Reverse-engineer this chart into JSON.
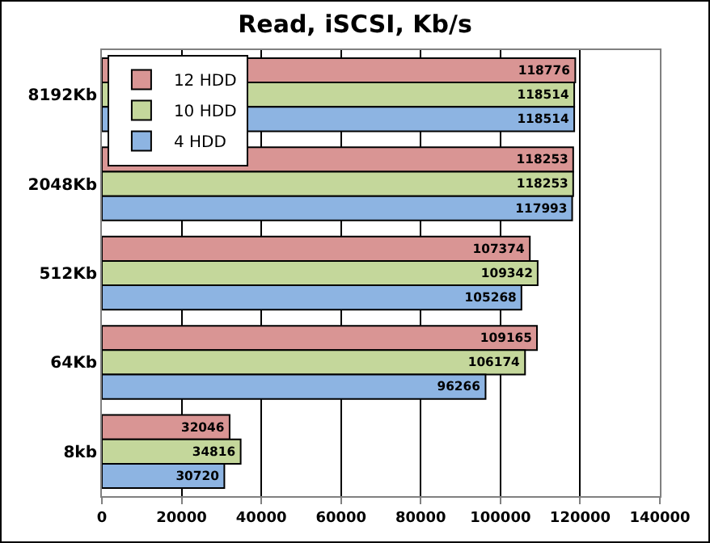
{
  "chart_data": {
    "type": "bar",
    "orientation": "horizontal",
    "title": "Read, iSCSI, Kb/s",
    "categories": [
      "8192Kb",
      "2048Kb",
      "512Kb",
      "64Kb",
      "8kb"
    ],
    "series": [
      {
        "name": "12 HDD",
        "color": "#d99594",
        "values": [
          118776,
          118253,
          107374,
          109165,
          32046
        ]
      },
      {
        "name": "10 HDD",
        "color": "#c4d79b",
        "values": [
          118514,
          118253,
          109342,
          106174,
          34816
        ]
      },
      {
        "name": "4 HDD",
        "color": "#8db4e2",
        "values": [
          118514,
          117993,
          105268,
          96266,
          30720
        ]
      }
    ],
    "xlim": [
      0,
      140000
    ],
    "xticks": [
      0,
      20000,
      40000,
      60000,
      80000,
      100000,
      120000,
      140000
    ],
    "grid": "x",
    "legend": "top left",
    "data_labels": true
  }
}
